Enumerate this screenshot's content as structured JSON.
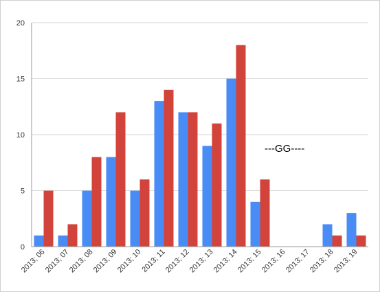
{
  "chart_data": {
    "type": "bar",
    "categories": [
      "2013; 06",
      "2013; 07",
      "2013; 08",
      "2013; 09",
      "2013; 10",
      "2013; 11",
      "2013; 12",
      "2013; 13",
      "2013; 14",
      "2013; 15",
      "2013; 16",
      "2013; 17",
      "2013; 18",
      "2013; 19"
    ],
    "series": [
      {
        "values": [
          1,
          1,
          5,
          8,
          5,
          13,
          12,
          9,
          15,
          4,
          0,
          0,
          2,
          3
        ],
        "color": "#4a8cf6"
      },
      {
        "values": [
          5,
          2,
          8,
          12,
          6,
          14,
          12,
          11,
          18,
          6,
          0,
          0,
          1,
          1
        ],
        "color": "#d2443b"
      }
    ],
    "ylim": [
      0,
      20
    ],
    "yticks": [
      0,
      5,
      10,
      15,
      20
    ],
    "grid": true,
    "annotation": "---GG----"
  }
}
